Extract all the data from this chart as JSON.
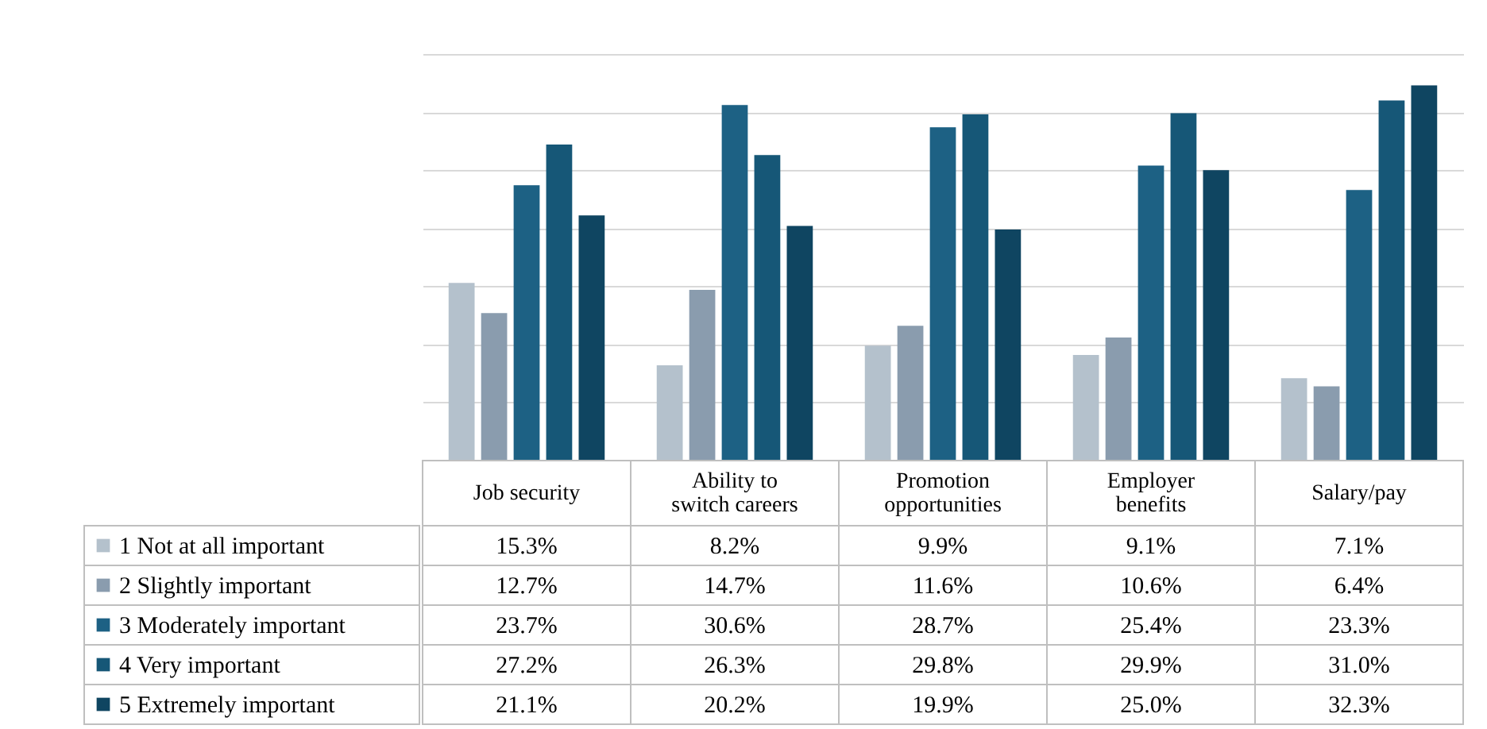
{
  "chart_data": {
    "type": "bar",
    "categories": [
      "Job security",
      "Ability to switch careers",
      "Promotion opportunities",
      "Employer benefits",
      "Salary/pay"
    ],
    "series": [
      {
        "name": "1 Not at all important",
        "color": "#b4c1cc",
        "values": [
          15.3,
          8.2,
          9.9,
          9.1,
          7.1
        ],
        "value_labels": [
          "15.3%",
          "8.2%",
          "9.9%",
          "9.1%",
          "7.1%"
        ]
      },
      {
        "name": "2 Slightly important",
        "color": "#8a9cae",
        "values": [
          12.7,
          14.7,
          11.6,
          10.6,
          6.4
        ],
        "value_labels": [
          "12.7%",
          "14.7%",
          "11.6%",
          "10.6%",
          "6.4%"
        ]
      },
      {
        "name": "3 Moderately important",
        "color": "#1d6184",
        "values": [
          23.7,
          30.6,
          28.7,
          25.4,
          23.3
        ],
        "value_labels": [
          "23.7%",
          "30.6%",
          "28.7%",
          "25.4%",
          "23.3%"
        ]
      },
      {
        "name": "4 Very important",
        "color": "#165777",
        "values": [
          27.2,
          26.3,
          29.8,
          29.9,
          31.0
        ],
        "value_labels": [
          "27.2%",
          "26.3%",
          "29.8%",
          "29.9%",
          "31.0%"
        ]
      },
      {
        "name": "5 Extremely important",
        "color": "#0f4561",
        "values": [
          21.1,
          20.2,
          19.9,
          25.0,
          32.3
        ],
        "value_labels": [
          "21.1%",
          "20.2%",
          "19.9%",
          "25.0%",
          "32.3%"
        ]
      }
    ],
    "ylim": [
      0,
      35
    ],
    "grid": "y",
    "legend": "bottom"
  }
}
